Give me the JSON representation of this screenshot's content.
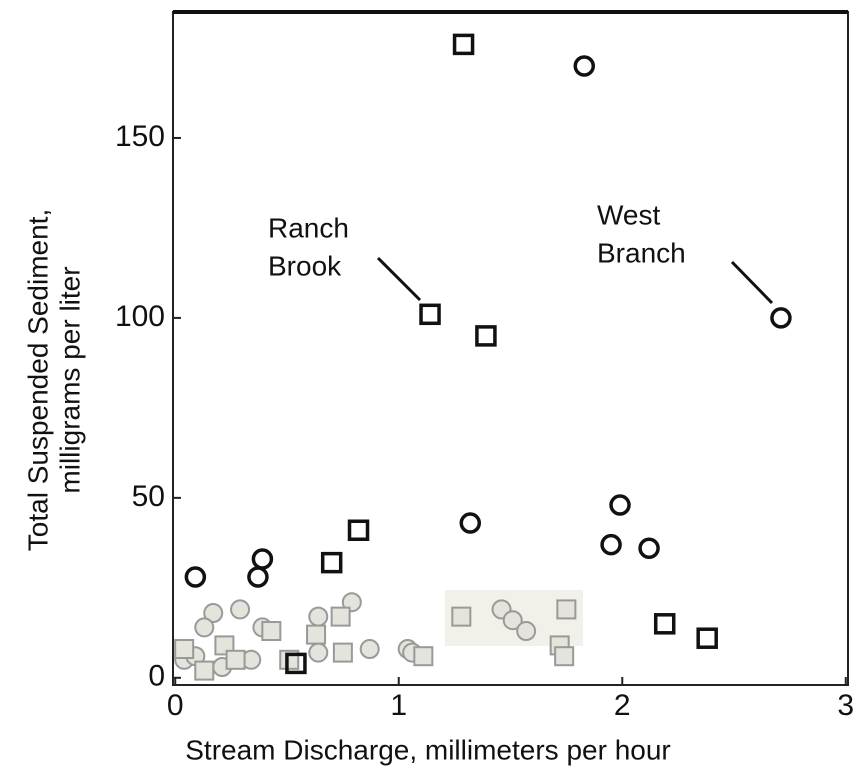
{
  "chart_data": {
    "type": "scatter",
    "ylabel": [
      "Total Suspended Sediment,",
      "milligrams per liter"
    ],
    "xlabel": "Stream Discharge, millimeters per hour",
    "annotations": [
      {
        "lines": [
          "Ranch",
          "Brook"
        ]
      },
      {
        "lines": [
          "West",
          "Branch"
        ]
      }
    ],
    "xlim": [
      -0.01,
      3.01
    ],
    "ylim": [
      -2,
      185
    ],
    "xticks": [
      0,
      1,
      2,
      3
    ],
    "yticks": [
      0,
      50,
      100,
      150
    ],
    "series": [
      {
        "name": "Ranch Brook",
        "marker": "square",
        "color": "#111111",
        "x": [
          1.29,
          1.14,
          1.39,
          0.82,
          0.7,
          2.19,
          2.38,
          0.54
        ],
        "values": [
          176,
          101,
          95,
          41,
          32,
          15,
          11,
          4
        ]
      },
      {
        "name": "West Branch",
        "marker": "circle",
        "color": "#111111",
        "x": [
          1.83,
          2.71,
          1.32,
          1.99,
          1.95,
          2.12,
          0.09,
          0.39,
          0.37
        ],
        "values": [
          170,
          100,
          43,
          48,
          37,
          36,
          28,
          33,
          28
        ]
      },
      {
        "marker": "circle",
        "color": "#999999",
        "x": [
          0.17,
          0.29,
          0.13,
          0.79,
          0.64,
          0.87,
          1.04,
          1.06,
          1.46,
          1.51,
          1.57,
          0.39,
          0.64,
          0.04,
          0.09,
          0.21,
          0.34
        ],
        "values": [
          18,
          19,
          14,
          21,
          17,
          8,
          8,
          7,
          19,
          16,
          13,
          14,
          7,
          5,
          6,
          3,
          5
        ]
      },
      {
        "marker": "square",
        "color": "#999999",
        "x": [
          1.28,
          1.75,
          1.72,
          1.74,
          0.74,
          0.43,
          0.22,
          0.75,
          1.11,
          0.63,
          0.04,
          0.27,
          0.51,
          0.13
        ],
        "values": [
          17,
          19,
          9,
          6,
          17,
          13,
          9,
          7,
          6,
          12,
          8,
          5,
          5,
          2
        ]
      }
    ]
  }
}
